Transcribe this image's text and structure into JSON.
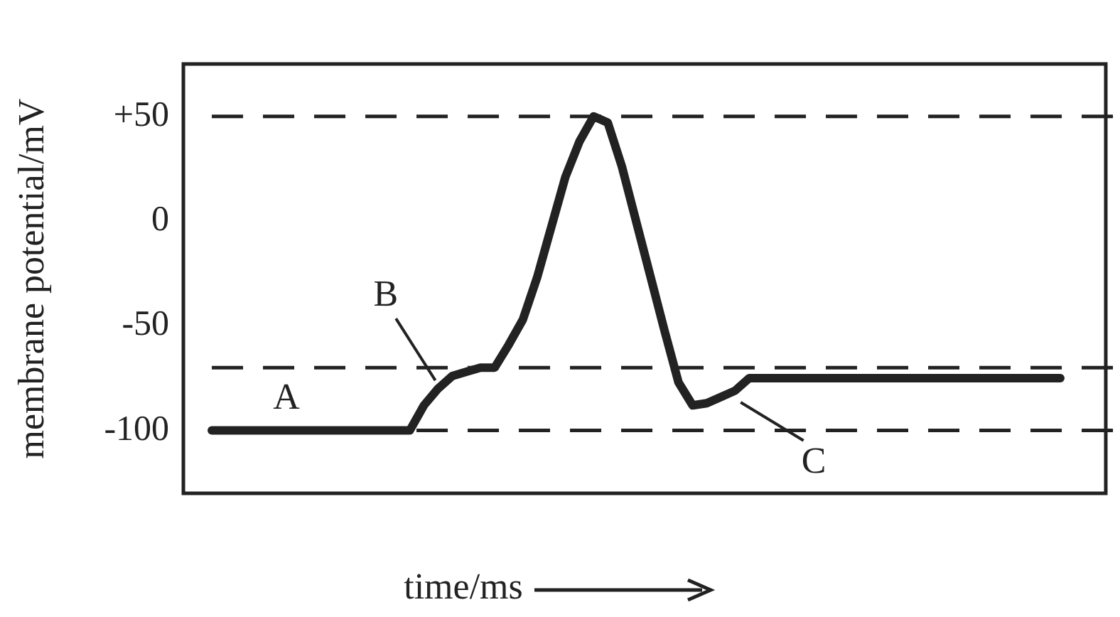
{
  "chart_data": {
    "type": "line",
    "ylabel": "membrane potential/mV",
    "xlabel": "time/ms",
    "categories": [
      null,
      null,
      null,
      null,
      null,
      null,
      null,
      null,
      null,
      null,
      null,
      null,
      null,
      null,
      null,
      null,
      null,
      null,
      null,
      null,
      null,
      null,
      null,
      null,
      null,
      null,
      null,
      null,
      null,
      null,
      null,
      null,
      null,
      null,
      null,
      null,
      null,
      null,
      null,
      null,
      null,
      null,
      null,
      null,
      null,
      null,
      null,
      null,
      null,
      null,
      null,
      null,
      null,
      null,
      null,
      null,
      null,
      null,
      null,
      null,
      null
    ],
    "series": [
      {
        "color": "#222222",
        "values": [
          -100,
          -100,
          -100,
          -100,
          -100,
          -100,
          -100,
          -100,
          -100,
          -100,
          -100,
          -100,
          -100,
          -100,
          -100,
          -88,
          -80,
          -74,
          -72,
          -70,
          -70,
          -59,
          -47,
          -27,
          -3,
          21,
          38,
          50,
          47,
          26,
          0,
          -26,
          -52,
          -77,
          -88,
          -87,
          -84,
          -81,
          -75,
          -75,
          -75,
          -75,
          -75,
          -75,
          -75,
          -75,
          -75,
          -75,
          -75,
          -75,
          -75,
          -75,
          -75,
          -75,
          -75,
          -75,
          -75,
          -75,
          -75,
          -75,
          -75
        ]
      }
    ],
    "ylim": [
      -130,
      75
    ],
    "yticks": [
      {
        "value": 50,
        "label": "+50"
      },
      0,
      -50,
      -100
    ],
    "tick_labels": "y",
    "grid": false,
    "legend": false,
    "marker": "none",
    "line_style": "solid",
    "ref_lines": [
      {
        "axis": "y",
        "value": 50,
        "color": "#222222",
        "line_style": "dashed"
      },
      {
        "axis": "y",
        "value": -70,
        "color": "#222222",
        "line_style": "dashed"
      },
      {
        "axis": "y",
        "value": -100,
        "color": "#222222",
        "line_style": "dashed"
      }
    ],
    "annotations": [
      "A",
      "B",
      "C"
    ]
  }
}
